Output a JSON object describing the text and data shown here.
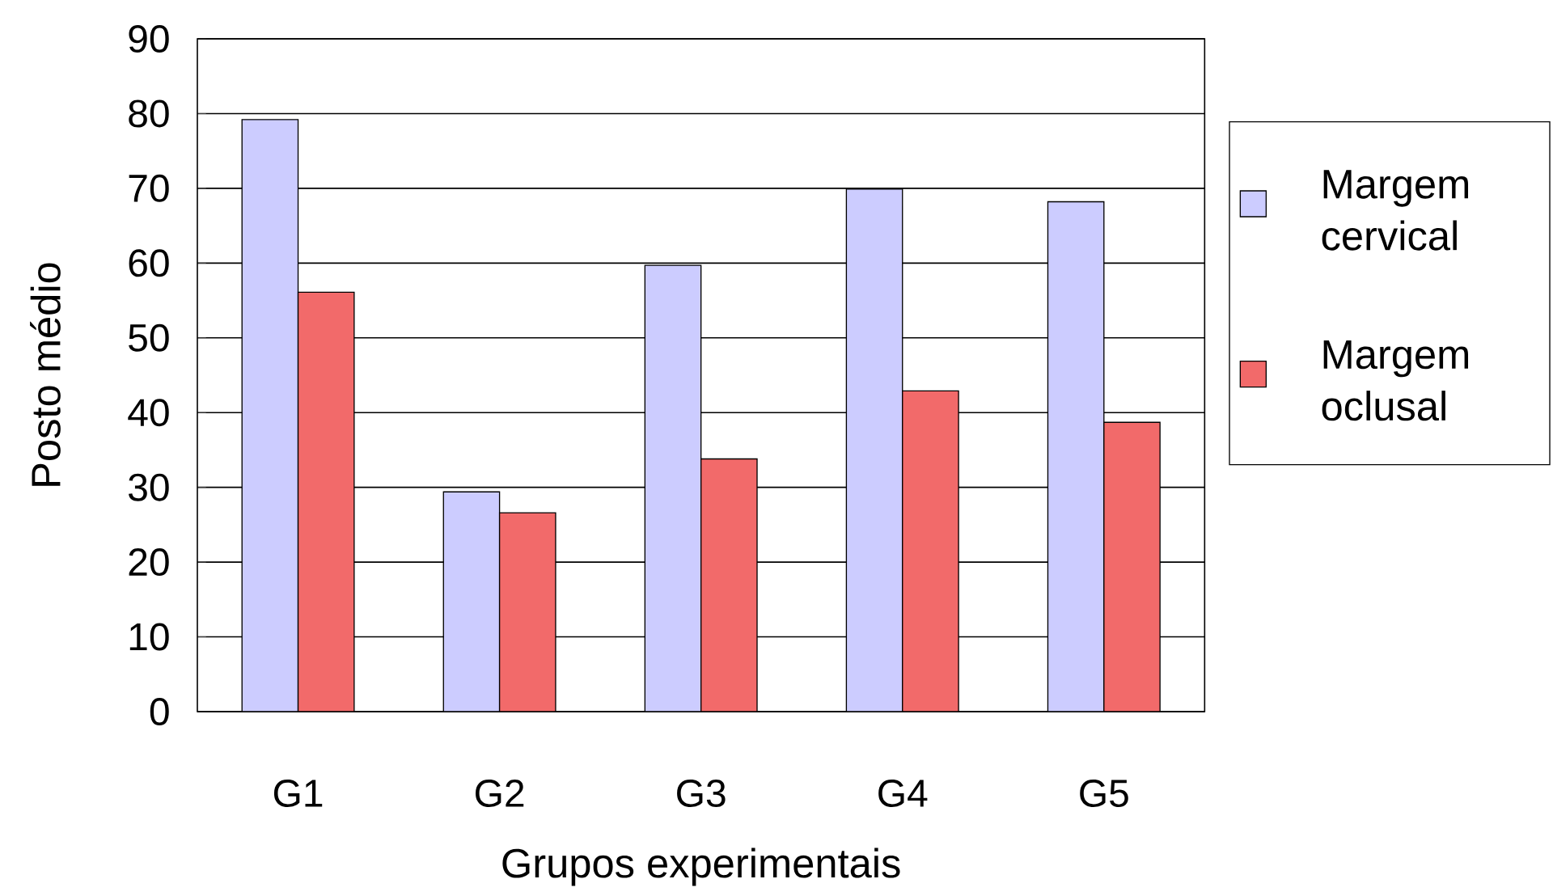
{
  "chart_data": {
    "type": "bar",
    "xlabel": "Grupos experimentais",
    "ylabel": "Posto médio",
    "categories": [
      "G1",
      "G2",
      "G3",
      "G4",
      "G5"
    ],
    "series": [
      {
        "name": "Margem cervical",
        "color": "#ccccff",
        "values": [
          79.2,
          29.4,
          59.7,
          69.9,
          68.2
        ]
      },
      {
        "name": "Margem oclusal",
        "color": "#f26a6a",
        "values": [
          56.1,
          26.6,
          33.8,
          42.9,
          38.7
        ]
      }
    ],
    "ylim": [
      0,
      90
    ],
    "yticks": [
      0,
      10,
      20,
      30,
      40,
      50,
      60,
      70,
      80,
      90
    ],
    "grid": "y",
    "legend": "right"
  }
}
